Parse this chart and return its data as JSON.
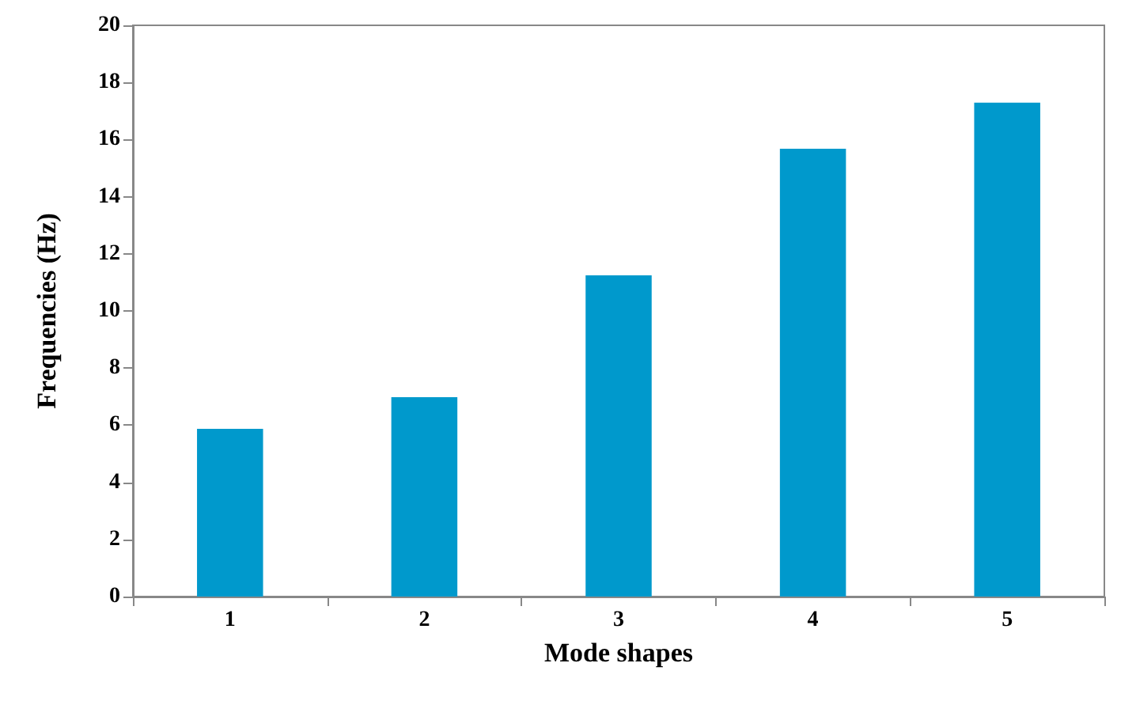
{
  "chart_data": {
    "type": "bar",
    "xlabel": "Mode shapes",
    "ylabel": "Frequencies (Hz)",
    "categories": [
      "1",
      "2",
      "3",
      "4",
      "5"
    ],
    "values": [
      5.87,
      6.98,
      11.25,
      15.68,
      17.29
    ],
    "color": "#0099cc",
    "ylim": [
      0,
      20
    ],
    "yticks": [
      0,
      2,
      4,
      6,
      8,
      10,
      12,
      14,
      16,
      18,
      20
    ],
    "grid": false
  }
}
